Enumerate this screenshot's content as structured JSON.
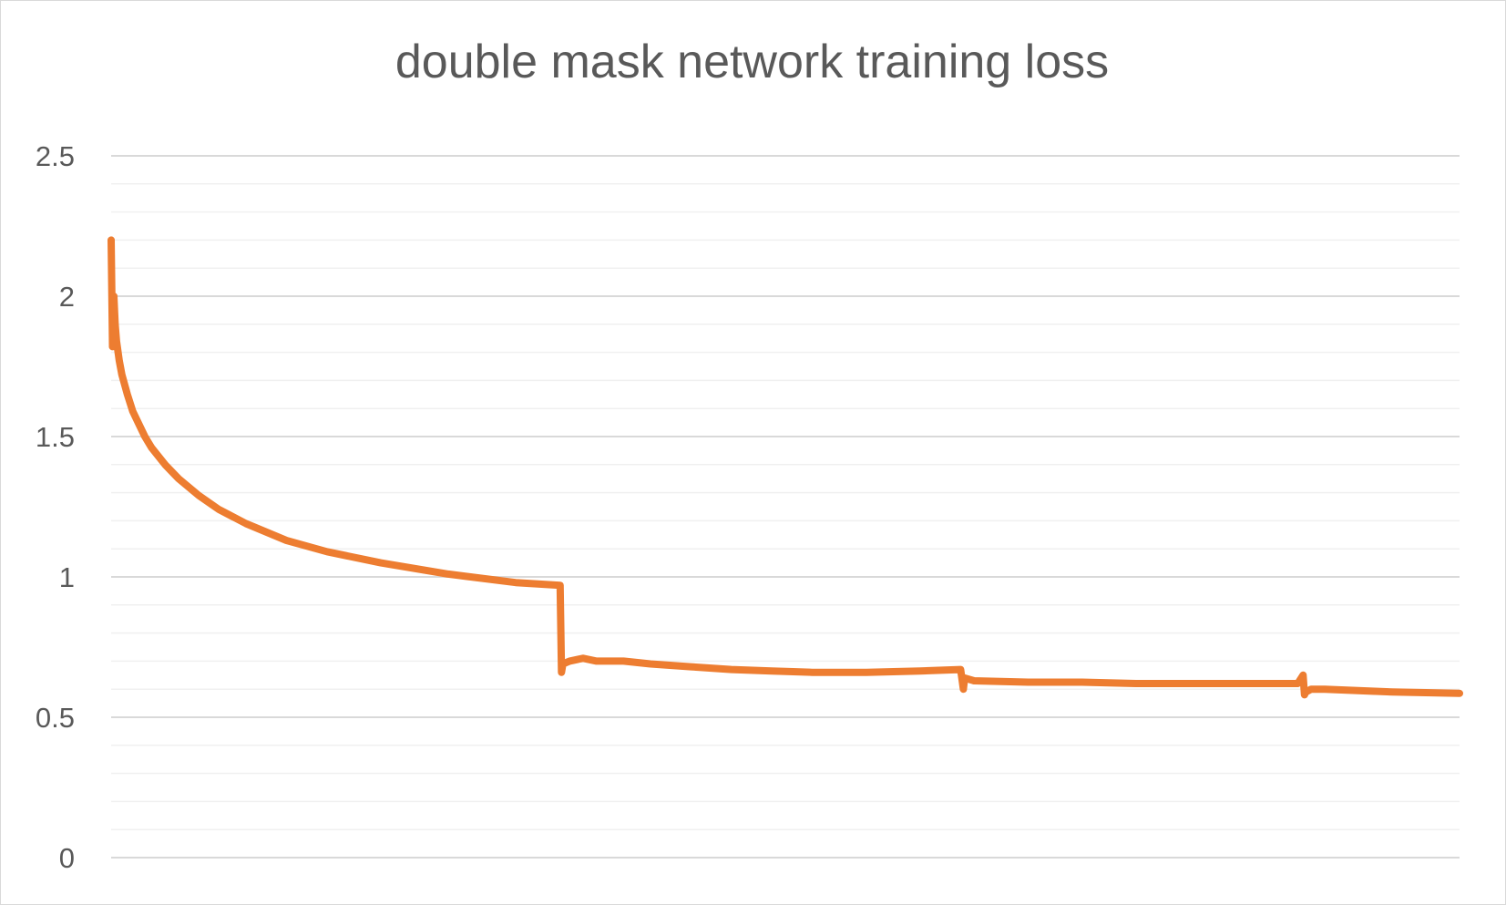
{
  "chart_data": {
    "type": "line",
    "title": "double mask network training loss",
    "xlabel": "",
    "ylabel": "",
    "ylim": [
      0,
      2.5
    ],
    "y_ticks": [
      "0",
      "0.5",
      "1",
      "1.5",
      "2",
      "2.5"
    ],
    "y_tick_values": [
      0,
      0.5,
      1,
      1.5,
      2,
      2.5
    ],
    "y_minor_step": 0.1,
    "grid": true,
    "legend": "none",
    "line_color": "#ED7D31",
    "x_range": [
      0,
      1000
    ],
    "series": [
      {
        "x": [
          0,
          1,
          2,
          3,
          4,
          6,
          8,
          12,
          16,
          20,
          25,
          30,
          40,
          50,
          65,
          80,
          100,
          130,
          160,
          200,
          250,
          300,
          333,
          334,
          335,
          340,
          350,
          360,
          380,
          400,
          430,
          460,
          490,
          520,
          560,
          600,
          630,
          632,
          633,
          640,
          680,
          720,
          760,
          800,
          840,
          880,
          884,
          885,
          886,
          890,
          900,
          950,
          1000
        ],
        "y": [
          2.2,
          1.82,
          2.0,
          1.9,
          1.84,
          1.77,
          1.72,
          1.65,
          1.59,
          1.55,
          1.5,
          1.46,
          1.4,
          1.35,
          1.29,
          1.24,
          1.19,
          1.13,
          1.09,
          1.05,
          1.01,
          0.98,
          0.97,
          0.66,
          0.69,
          0.7,
          0.71,
          0.7,
          0.7,
          0.69,
          0.68,
          0.67,
          0.665,
          0.66,
          0.66,
          0.665,
          0.67,
          0.6,
          0.64,
          0.63,
          0.625,
          0.625,
          0.62,
          0.62,
          0.62,
          0.62,
          0.65,
          0.58,
          0.59,
          0.6,
          0.6,
          0.59,
          0.585
        ]
      }
    ]
  }
}
